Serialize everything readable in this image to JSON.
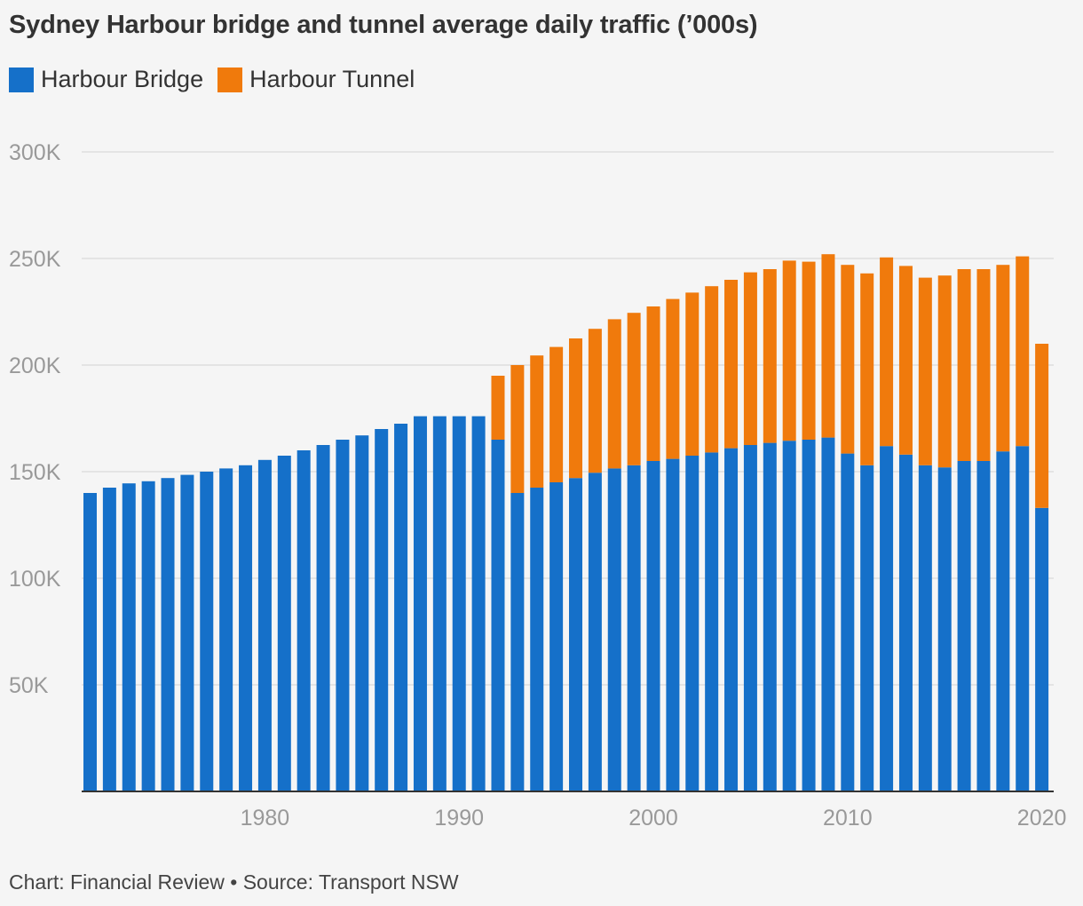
{
  "title": "Sydney Harbour bridge and tunnel average daily traffic (’000s)",
  "footer": "Chart: Financial Review • Source: Transport NSW",
  "colors": {
    "bridge": "#1570c9",
    "tunnel": "#f07a0c",
    "grid": "#d9d9d9",
    "axis": "#333333"
  },
  "chart_data": {
    "type": "bar",
    "stacked": true,
    "x": [
      1971,
      1972,
      1973,
      1974,
      1975,
      1976,
      1977,
      1978,
      1979,
      1980,
      1981,
      1982,
      1983,
      1984,
      1985,
      1986,
      1987,
      1988,
      1989,
      1990,
      1991,
      1992,
      1993,
      1994,
      1995,
      1996,
      1997,
      1998,
      1999,
      2000,
      2001,
      2002,
      2003,
      2004,
      2005,
      2006,
      2007,
      2008,
      2009,
      2010,
      2011,
      2012,
      2013,
      2014,
      2015,
      2016,
      2017,
      2018,
      2019,
      2020
    ],
    "series": [
      {
        "name": "Harbour Bridge",
        "values": [
          140,
          142.5,
          144.5,
          145.5,
          147,
          148.5,
          150,
          151.5,
          153,
          155.5,
          157.5,
          160,
          162.5,
          165,
          167,
          170,
          172.5,
          176,
          176,
          176,
          176,
          165,
          140,
          142.5,
          145,
          147,
          149.5,
          151.5,
          153,
          155,
          156,
          157.5,
          159,
          161,
          162.5,
          163.5,
          164.5,
          165,
          166,
          158.5,
          153,
          162,
          158,
          153,
          152,
          155,
          155,
          159.5,
          162,
          133
        ]
      },
      {
        "name": "Harbour Tunnel",
        "values": [
          0,
          0,
          0,
          0,
          0,
          0,
          0,
          0,
          0,
          0,
          0,
          0,
          0,
          0,
          0,
          0,
          0,
          0,
          0,
          0,
          0,
          30,
          60,
          62,
          63.5,
          65.5,
          67.5,
          70,
          71.5,
          72.5,
          75,
          76.5,
          78,
          79,
          81,
          81.5,
          84.5,
          83.5,
          86,
          88.5,
          90,
          88.5,
          88.5,
          88,
          90,
          90,
          90,
          87.5,
          89,
          77
        ]
      }
    ],
    "x_ticks": [
      "1980",
      "1990",
      "2000",
      "2010",
      "2020"
    ],
    "y_ticks": [
      "50K",
      "100K",
      "150K",
      "200K",
      "250K",
      "300K"
    ],
    "y_tick_values": [
      50,
      100,
      150,
      200,
      250,
      300
    ],
    "ylim": [
      0,
      300
    ],
    "xlabel": "",
    "ylabel": "",
    "legend": [
      {
        "label": "Harbour Bridge",
        "color": "#1570c9"
      },
      {
        "label": "Harbour Tunnel",
        "color": "#f07a0c"
      }
    ],
    "legend_position": "top-left",
    "grid": true
  }
}
